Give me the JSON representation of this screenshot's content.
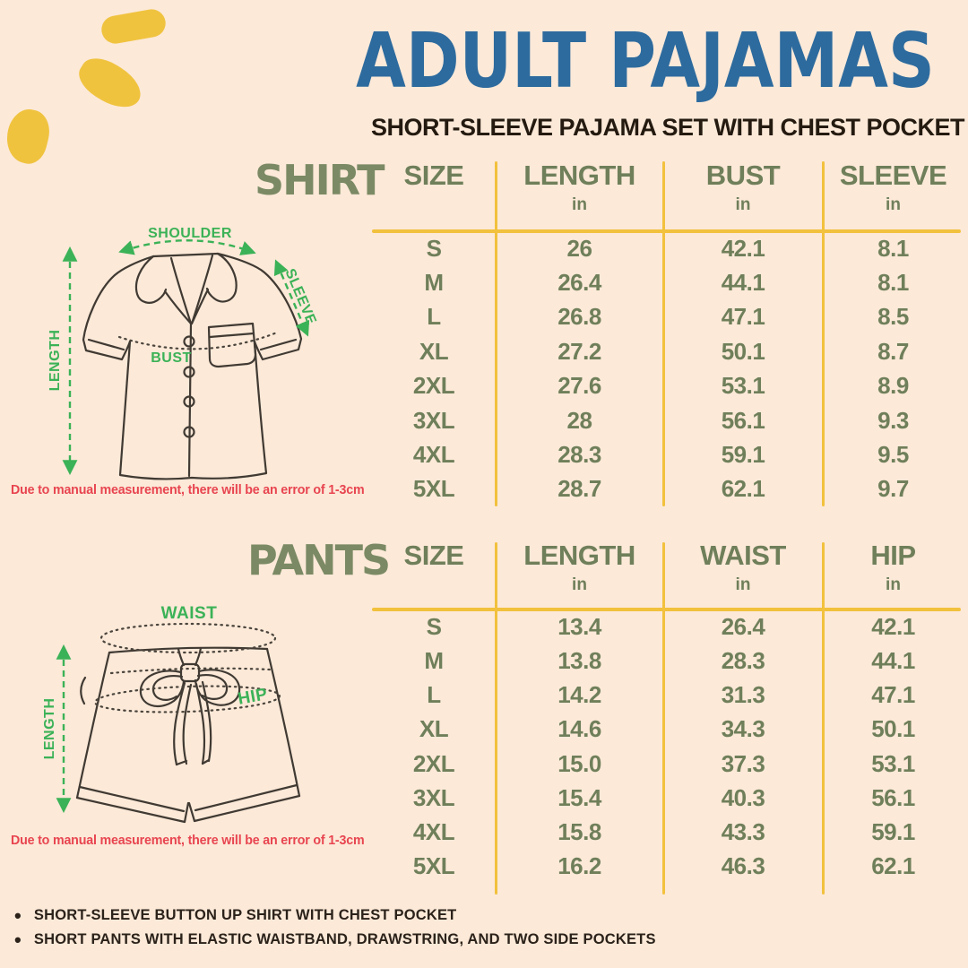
{
  "page": {
    "title": "ADULT PAJAMAS",
    "subtitle": "SHORT-SLEEVE PAJAMA SET WITH CHEST POCKET",
    "colors": {
      "background": "#fce9d8",
      "title_blue": "#2d6b9e",
      "sage_green": "#6f7f5a",
      "table_yellow": "#f2c13d",
      "annotation_green": "#3bb257",
      "alert_red": "#e84550",
      "ink": "#2b221a"
    }
  },
  "shirt": {
    "section_label": "SHIRT",
    "columns": [
      {
        "label": "SIZE",
        "unit": ""
      },
      {
        "label": "LENGTH",
        "unit": "in"
      },
      {
        "label": "BUST",
        "unit": "in"
      },
      {
        "label": "SLEEVE",
        "unit": "in"
      }
    ],
    "rows": [
      [
        "S",
        "26",
        "42.1",
        "8.1"
      ],
      [
        "M",
        "26.4",
        "44.1",
        "8.1"
      ],
      [
        "L",
        "26.8",
        "47.1",
        "8.5"
      ],
      [
        "XL",
        "27.2",
        "50.1",
        "8.7"
      ],
      [
        "2XL",
        "27.6",
        "53.1",
        "8.9"
      ],
      [
        "3XL",
        "28",
        "56.1",
        "9.3"
      ],
      [
        "4XL",
        "28.3",
        "59.1",
        "9.5"
      ],
      [
        "5XL",
        "28.7",
        "62.1",
        "9.7"
      ]
    ],
    "diagram_labels": {
      "shoulder": "SHOULDER",
      "sleeve": "SLEEVE",
      "length": "LENGTH",
      "bust": "BUST"
    },
    "disclaimer": "Due to manual measurement, there will be an error of 1-3cm"
  },
  "pants": {
    "section_label": "PANTS",
    "columns": [
      {
        "label": "SIZE",
        "unit": ""
      },
      {
        "label": "LENGTH",
        "unit": "in"
      },
      {
        "label": "WAIST",
        "unit": "in"
      },
      {
        "label": "HIP",
        "unit": "in"
      }
    ],
    "rows": [
      [
        "S",
        "13.4",
        "26.4",
        "42.1"
      ],
      [
        "M",
        "13.8",
        "28.3",
        "44.1"
      ],
      [
        "L",
        "14.2",
        "31.3",
        "47.1"
      ],
      [
        "XL",
        "14.6",
        "34.3",
        "50.1"
      ],
      [
        "2XL",
        "15.0",
        "37.3",
        "53.1"
      ],
      [
        "3XL",
        "15.4",
        "40.3",
        "56.1"
      ],
      [
        "4XL",
        "15.8",
        "43.3",
        "59.1"
      ],
      [
        "5XL",
        "16.2",
        "46.3",
        "62.1"
      ]
    ],
    "diagram_labels": {
      "waist": "WAIST",
      "hip": "HIP",
      "length": "LENGTH"
    },
    "disclaimer": "Due to manual measurement, there will be an error of 1-3cm"
  },
  "footer": {
    "bullets": [
      "SHORT-SLEEVE BUTTON UP SHIRT WITH CHEST POCKET",
      "SHORT PANTS WITH ELASTIC WAISTBAND, DRAWSTRING, AND TWO SIDE POCKETS"
    ]
  }
}
